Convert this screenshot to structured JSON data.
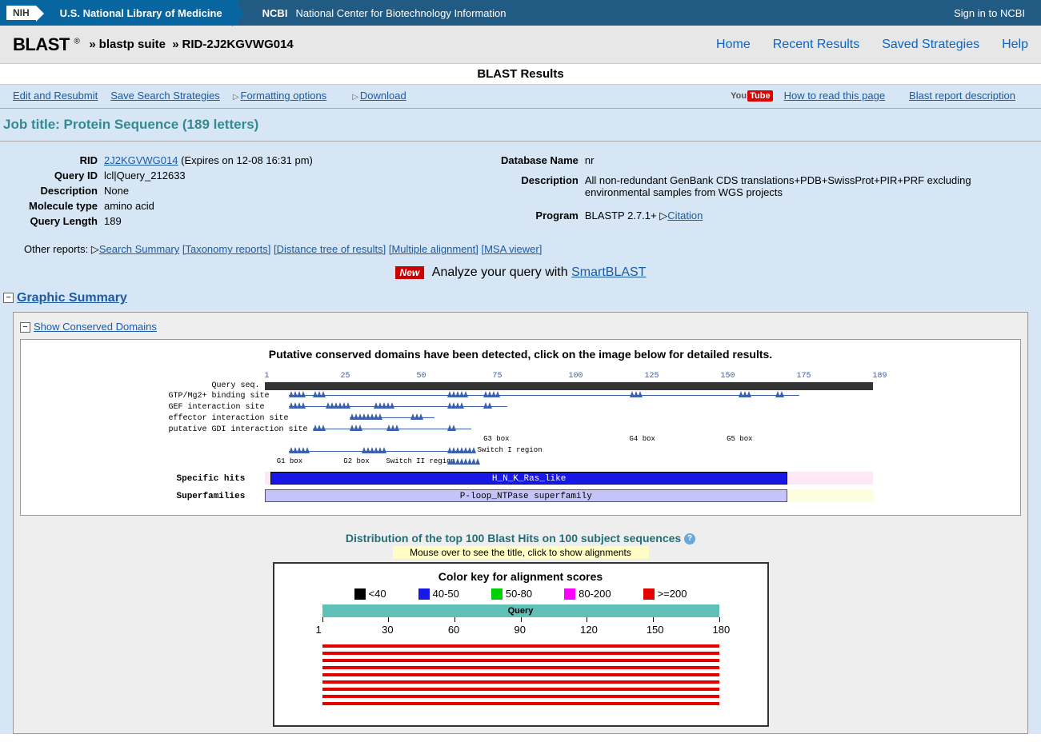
{
  "header": {
    "nih": "NIH",
    "nlm": "U.S. National Library of Medicine",
    "ncbi_label": "NCBI",
    "ncbi_desc": "National Center for Biotechnology Information",
    "signin": "Sign in to NCBI"
  },
  "blast_bar": {
    "logo": "BLAST",
    "suite": "blastp suite",
    "rid": "RID-2J2KGVWG014",
    "nav": {
      "home": "Home",
      "recent": "Recent Results",
      "saved": "Saved Strategies",
      "help": "Help"
    }
  },
  "results_title": "BLAST Results",
  "actions": {
    "edit": "Edit and Resubmit",
    "save": "Save Search Strategies",
    "formatting": "Formatting options",
    "download": "Download",
    "howto": "How to read this page",
    "report_desc": "Blast report description"
  },
  "job_title": "Job title: Protein Sequence (189 letters)",
  "info_left": {
    "rid_label": "RID",
    "rid_val": "2J2KGVWG014",
    "rid_expire": " (Expires on 12-08 16:31 pm)",
    "qid_label": "Query ID",
    "qid_val": "lcl|Query_212633",
    "desc_label": "Description",
    "desc_val": "None",
    "mol_label": "Molecule type",
    "mol_val": "amino acid",
    "qlen_label": "Query Length",
    "qlen_val": "189"
  },
  "info_right": {
    "db_label": "Database Name",
    "db_val": "nr",
    "desc_label": "Description",
    "desc_val": "All non-redundant GenBank CDS translations+PDB+SwissProt+PIR+PRF excluding environmental samples from WGS projects",
    "prog_label": "Program",
    "prog_val": "BLASTP 2.7.1+ ",
    "citation": "Citation"
  },
  "other_reports": {
    "label": "Other reports: ",
    "summary": "Search Summary",
    "taxonomy": "[Taxonomy reports]",
    "distance": "[Distance tree of results]",
    "multiple": "[Multiple alignment]",
    "msa": "[MSA viewer]"
  },
  "smartblast": {
    "prefix": "Analyze your query with ",
    "link": "SmartBLAST",
    "new": "New"
  },
  "graphic": {
    "header": "Graphic Summary",
    "conserved_link": "Show Conserved Domains",
    "domain_title": "Putative conserved domains have been detected, click on the image below for detailed results.",
    "ruler": [
      "1",
      "25",
      "50",
      "75",
      "100",
      "125",
      "150",
      "175",
      "189"
    ],
    "query_label": "Query seq.",
    "features": [
      "GTP/Mg2+ binding site",
      "GEF interaction site",
      "effector interaction site",
      "putative GDI interaction site"
    ],
    "boxes": {
      "g3": "G3 box",
      "g4": "G4 box",
      "g5": "G5 box",
      "g1": "G1 box",
      "g2": "G2 box",
      "sw1": "Switch I region",
      "sw2": "Switch II region"
    },
    "specific_label": "Specific hits",
    "specific_text": "H_N_K_Ras_like",
    "super_label": "Superfamilies",
    "super_text": "P-loop_NTPase superfamily"
  },
  "dist": {
    "title": "Distribution of the top 100 Blast Hits on 100 subject sequences",
    "hint": "Mouse over to see the title, click to show alignments",
    "colorkey_title": "Color key for alignment scores",
    "keys": [
      {
        "c": "#000000",
        "t": "<40"
      },
      {
        "c": "#1818e6",
        "t": "40-50"
      },
      {
        "c": "#00d000",
        "t": "50-80"
      },
      {
        "c": "#ff00ff",
        "t": "80-200"
      },
      {
        "c": "#e50000",
        "t": ">=200"
      }
    ],
    "query_label": "Query",
    "ruler": [
      "1",
      "30",
      "60",
      "90",
      "120",
      "150",
      "180"
    ],
    "hit_count": 9
  }
}
